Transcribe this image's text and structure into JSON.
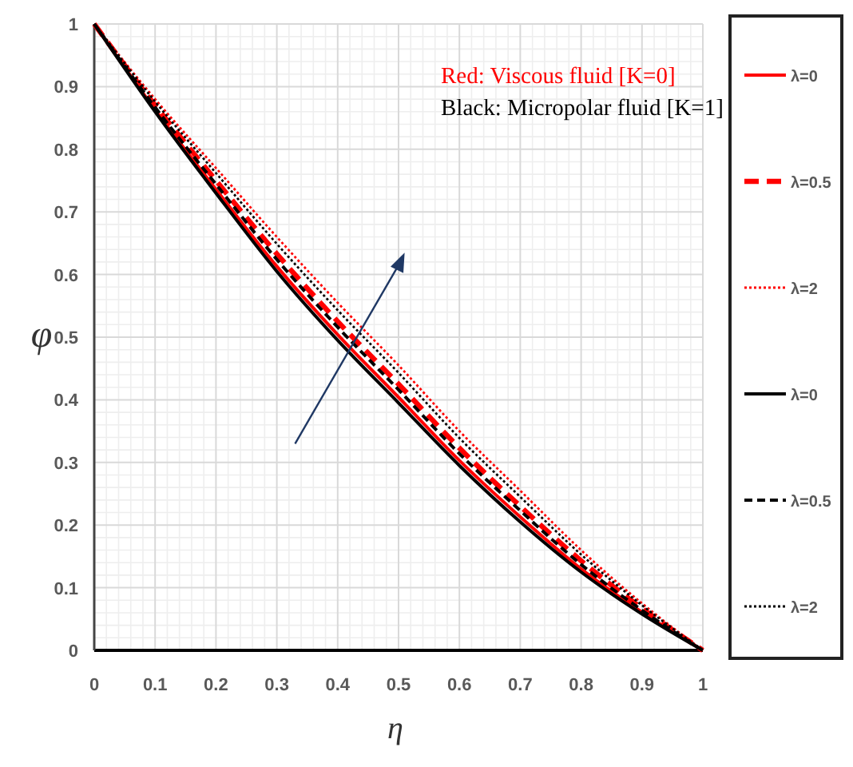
{
  "chart_data": {
    "type": "line",
    "xlabel": "η",
    "ylabel": "φ",
    "x": [
      0,
      0.1,
      0.2,
      0.3,
      0.4,
      0.5,
      0.6,
      0.7,
      0.8,
      0.9,
      1
    ],
    "xlim": [
      0,
      1
    ],
    "ylim": [
      0,
      1
    ],
    "xticks": [
      0,
      0.1,
      0.2,
      0.3,
      0.4,
      0.5,
      0.6,
      0.7,
      0.8,
      0.9,
      1
    ],
    "yticks": [
      0,
      0.1,
      0.2,
      0.3,
      0.4,
      0.5,
      0.6,
      0.7,
      0.8,
      0.9,
      1
    ],
    "grid": true,
    "legend": "right",
    "marker": "none",
    "annotations": [
      "Red: Viscous fluid [K=0]",
      "Black: Micropolar fluid [K=1]"
    ],
    "series": [
      {
        "name": "λ=0",
        "color": "#ff0000",
        "line_style": "solid",
        "values": [
          1,
          0.863,
          0.736,
          0.613,
          0.504,
          0.404,
          0.303,
          0.213,
          0.13,
          0.061,
          0
        ]
      },
      {
        "name": "λ=0.5",
        "color": "#ff0000",
        "line_style": "dashed",
        "values": [
          1,
          0.87,
          0.75,
          0.633,
          0.525,
          0.425,
          0.323,
          0.23,
          0.143,
          0.067,
          0
        ]
      },
      {
        "name": "λ=2",
        "color": "#ff0000",
        "line_style": "dotted",
        "values": [
          1,
          0.88,
          0.77,
          0.66,
          0.555,
          0.455,
          0.35,
          0.255,
          0.16,
          0.075,
          0
        ]
      },
      {
        "name": "λ=0",
        "color": "#000000",
        "line_style": "solid",
        "values": [
          1,
          0.86,
          0.73,
          0.605,
          0.495,
          0.395,
          0.295,
          0.205,
          0.125,
          0.058,
          0
        ]
      },
      {
        "name": "λ=0.5",
        "color": "#000000",
        "line_style": "dashed",
        "values": [
          1,
          0.867,
          0.744,
          0.624,
          0.516,
          0.416,
          0.314,
          0.223,
          0.137,
          0.064,
          0
        ]
      },
      {
        "name": "λ=2",
        "color": "#000000",
        "line_style": "dotted",
        "values": [
          1,
          0.876,
          0.762,
          0.649,
          0.543,
          0.443,
          0.339,
          0.245,
          0.153,
          0.072,
          0
        ]
      }
    ]
  }
}
